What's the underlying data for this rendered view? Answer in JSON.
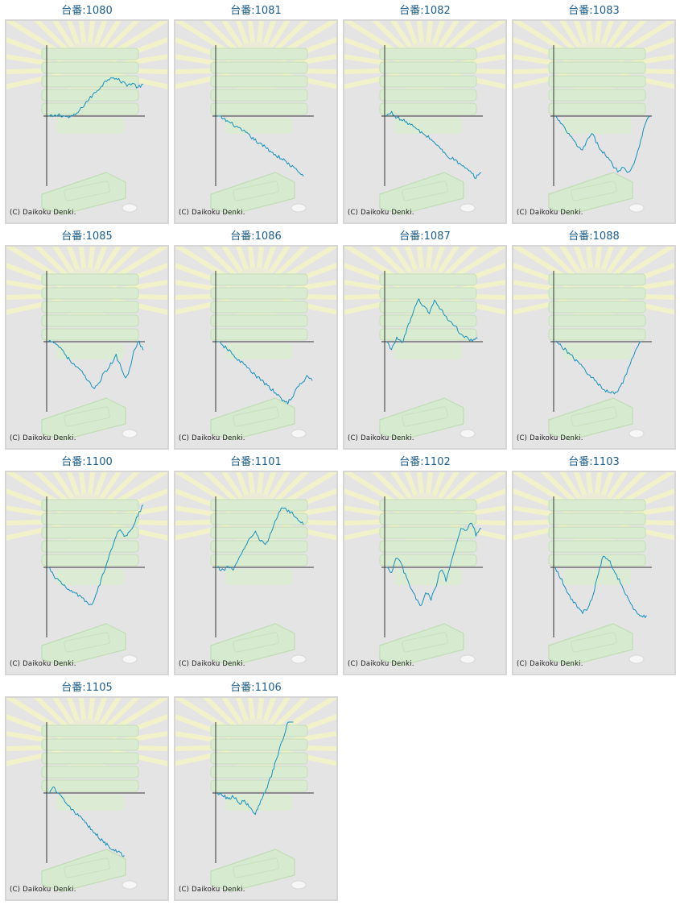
{
  "copyright": "(C) Daikoku Denki.",
  "colors": {
    "line": "#1591bd",
    "axis": "#333333",
    "panel_bg": "#e4e4e4",
    "title": "#1a5d8c"
  },
  "charts": [
    {
      "title": "台番:1080",
      "chart_data": {
        "type": "line",
        "trend": [
          0,
          -1,
          2,
          0,
          -2,
          1,
          8,
          18,
          26,
          34,
          42,
          50,
          56,
          52,
          48,
          44,
          46,
          40,
          45
        ]
      }
    },
    {
      "title": "台番:1081",
      "chart_data": {
        "type": "line",
        "trend": [
          0,
          -3,
          -8,
          -12,
          -18,
          -22,
          -28,
          -34,
          -40,
          -44,
          -50,
          -56,
          -60,
          -66,
          -72,
          -78,
          -85
        ]
      }
    },
    {
      "title": "台番:1082",
      "chart_data": {
        "type": "line",
        "trend": [
          0,
          5,
          -2,
          -6,
          -9,
          -14,
          -20,
          -25,
          -30,
          -36,
          -44,
          -52,
          -58,
          -62,
          -68,
          -74,
          -80,
          -87,
          -80
        ]
      }
    },
    {
      "title": "台番:1083",
      "chart_data": {
        "type": "line",
        "trend": [
          0,
          -10,
          -20,
          -30,
          -40,
          -50,
          -35,
          -25,
          -40,
          -50,
          -60,
          -70,
          -78,
          -72,
          -80,
          -65,
          -40,
          -10,
          0
        ]
      }
    },
    {
      "title": "台番:1085",
      "chart_data": {
        "type": "line",
        "trend": [
          0,
          2,
          -5,
          -10,
          -20,
          -28,
          -35,
          -40,
          -48,
          -58,
          -65,
          -60,
          -48,
          -40,
          -30,
          -20,
          -35,
          -50,
          -40,
          -10,
          0,
          -12
        ]
      }
    },
    {
      "title": "台番:1086",
      "chart_data": {
        "type": "line",
        "trend": [
          0,
          -5,
          -10,
          -18,
          -24,
          -30,
          -36,
          -44,
          -50,
          -56,
          -62,
          -68,
          -75,
          -82,
          -86,
          -78,
          -65,
          -58,
          -48,
          -55
        ]
      }
    },
    {
      "title": "台番:1087",
      "chart_data": {
        "type": "line",
        "trend": [
          0,
          -10,
          5,
          0,
          20,
          40,
          60,
          50,
          40,
          58,
          48,
          36,
          28,
          20,
          10,
          6,
          0,
          5
        ]
      }
    },
    {
      "title": "台番:1088",
      "chart_data": {
        "type": "line",
        "trend": [
          0,
          -5,
          -12,
          -20,
          -28,
          -35,
          -44,
          -52,
          -60,
          -68,
          -70,
          -72,
          -65,
          -50,
          -30,
          -10,
          0
        ]
      }
    },
    {
      "title": "台番:1100",
      "chart_data": {
        "type": "line",
        "trend": [
          0,
          -10,
          -18,
          -25,
          -30,
          -34,
          -38,
          -42,
          -50,
          -55,
          -40,
          -20,
          0,
          20,
          40,
          55,
          42,
          50,
          60,
          75,
          88
        ]
      }
    },
    {
      "title": "台番:1101",
      "chart_data": {
        "type": "line",
        "trend": [
          0,
          -5,
          2,
          -3,
          12,
          25,
          40,
          50,
          38,
          30,
          50,
          70,
          85,
          80,
          75,
          68,
          60
        ]
      }
    },
    {
      "title": "台番:1102",
      "chart_data": {
        "type": "line",
        "trend": [
          0,
          -10,
          15,
          5,
          -15,
          -30,
          -45,
          -55,
          -35,
          -45,
          -25,
          0,
          -20,
          10,
          35,
          55,
          50,
          65,
          45,
          55
        ]
      }
    },
    {
      "title": "台番:1103",
      "chart_data": {
        "type": "line",
        "trend": [
          0,
          -15,
          -30,
          -45,
          -55,
          -63,
          -60,
          -40,
          -10,
          18,
          10,
          -5,
          -20,
          -35,
          -50,
          -62,
          -70,
          -68
        ]
      }
    },
    {
      "title": "台番:1105",
      "chart_data": {
        "type": "line",
        "trend": [
          0,
          8,
          -2,
          -10,
          -20,
          -28,
          -36,
          -44,
          -52,
          -60,
          -68,
          -74,
          -80,
          -84,
          -88
        ]
      }
    },
    {
      "title": "台番:1106",
      "chart_data": {
        "type": "line",
        "trend": [
          0,
          -3,
          -8,
          -5,
          -15,
          -10,
          -22,
          -30,
          -12,
          5,
          25,
          50,
          75,
          100,
          115
        ]
      }
    }
  ]
}
